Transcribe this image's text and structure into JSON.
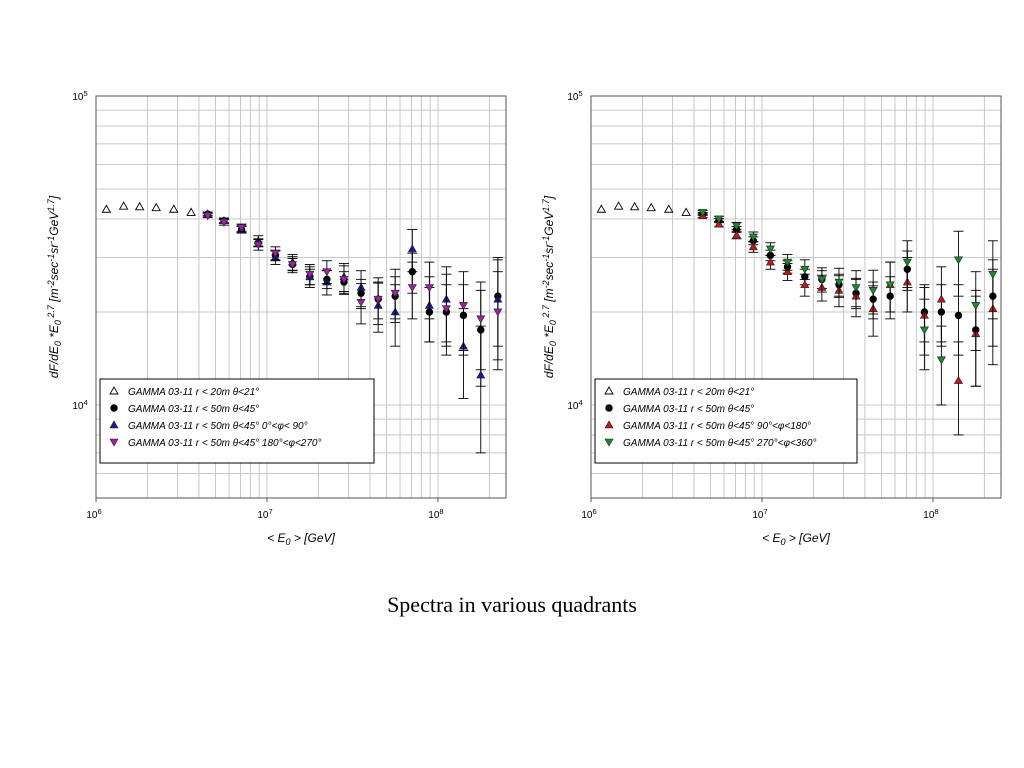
{
  "caption": "Spectra in various quadrants",
  "chart_data": [
    {
      "type": "scatter",
      "xscale": "log",
      "yscale": "log",
      "xlim": [
        1000000,
        250000000
      ],
      "ylim": [
        5000,
        100000
      ],
      "xlabel": "< E0 > [GeV]",
      "ylabel": "dF/dE0 *E0^2.7 [m^-2 sec^-1 sr^-1 GeV^1.7]",
      "xticks": [
        "10^6",
        "10^7",
        "10^8"
      ],
      "yticks": [
        "10^4",
        "10^5"
      ],
      "grid": true,
      "legend_position": "bottom-left",
      "series": [
        {
          "name": "GAMMA 03-11 r < 20m θ<21°",
          "marker": "triangle-up-open",
          "color": "#000000",
          "x": [
            1150000,
            1450000,
            1800000,
            2250000,
            2850000,
            3600000
          ],
          "y": [
            43000,
            44000,
            43800,
            43500,
            43000,
            42000
          ],
          "err": [
            0,
            0,
            0,
            0,
            0,
            0
          ]
        },
        {
          "name": "GAMMA 03-11 r < 50m θ<45°",
          "marker": "circle",
          "color": "#000000",
          "x": [
            4500000,
            5600000,
            7100000,
            8900000,
            11200000,
            14100000,
            17800000,
            22400000,
            28200000,
            35500000,
            44700000,
            56200000,
            70800000,
            89100000,
            112000000,
            141000000,
            178000000,
            224000000
          ],
          "y": [
            41500,
            39500,
            37000,
            33500,
            30500,
            28500,
            26000,
            25500,
            25000,
            23000,
            22000,
            22500,
            27000,
            20000,
            20000,
            19500,
            17500,
            22500
          ],
          "err": [
            500,
            600,
            800,
            1000,
            1200,
            1300,
            1500,
            1700,
            2000,
            2500,
            3000,
            3500,
            4000,
            4000,
            4500,
            5000,
            6000,
            7000
          ]
        },
        {
          "name": "GAMMA 03-11 r < 50m θ<45° 0°<φ< 90°",
          "marker": "triangle-up",
          "color": "#1a1aa0",
          "x": [
            4500000,
            5600000,
            7100000,
            8900000,
            11200000,
            14100000,
            17800000,
            22400000,
            28200000,
            35500000,
            44700000,
            56200000,
            70800000,
            89100000,
            112000000,
            141000000,
            178000000,
            224000000
          ],
          "y": [
            41500,
            39500,
            37000,
            34000,
            30000,
            29000,
            26000,
            25000,
            26000,
            24000,
            21000,
            20000,
            32000,
            21000,
            22000,
            15500,
            12500,
            22000
          ],
          "err": [
            600,
            800,
            1000,
            1300,
            1500,
            1700,
            2000,
            2300,
            2700,
            3200,
            3800,
            4500,
            5000,
            5000,
            6000,
            5000,
            5500,
            8000
          ]
        },
        {
          "name": "GAMMA 03-11 r < 50m θ<45° 180°<φ<270°",
          "marker": "triangle-down",
          "color": "#a020a0",
          "x": [
            4500000,
            5600000,
            7100000,
            8900000,
            11200000,
            14100000,
            17800000,
            22400000,
            28200000,
            35500000,
            44700000,
            56200000,
            70800000,
            89100000,
            112000000,
            141000000,
            178000000,
            224000000
          ],
          "y": [
            41000,
            39000,
            37500,
            33000,
            31000,
            28500,
            26500,
            27000,
            25500,
            21500,
            22000,
            23000,
            24000,
            24000,
            20500,
            21000,
            19000,
            20000
          ],
          "err": [
            600,
            800,
            1000,
            1300,
            1500,
            1700,
            2000,
            2300,
            2700,
            3200,
            3800,
            4500,
            5000,
            5000,
            6000,
            6000,
            6000,
            7000
          ]
        }
      ]
    },
    {
      "type": "scatter",
      "xscale": "log",
      "yscale": "log",
      "xlim": [
        1000000,
        250000000
      ],
      "ylim": [
        5000,
        100000
      ],
      "xlabel": "< E0 > [GeV]",
      "ylabel": "dF/dE0 *E0^2.7 [m^-2 sec^-1 sr^-1 GeV^1.7]",
      "xticks": [
        "10^6",
        "10^7",
        "10^8"
      ],
      "yticks": [
        "10^4",
        "10^5"
      ],
      "grid": true,
      "legend_position": "bottom-left",
      "series": [
        {
          "name": "GAMMA 03-11 r < 20m θ<21°",
          "marker": "triangle-up-open",
          "color": "#000000",
          "x": [
            1150000,
            1450000,
            1800000,
            2250000,
            2850000,
            3600000
          ],
          "y": [
            43000,
            44000,
            43800,
            43500,
            43000,
            42000
          ],
          "err": [
            0,
            0,
            0,
            0,
            0,
            0
          ]
        },
        {
          "name": "GAMMA 03-11 r < 50m θ<45°",
          "marker": "circle",
          "color": "#000000",
          "x": [
            4500000,
            5600000,
            7100000,
            8900000,
            11200000,
            14100000,
            17800000,
            22400000,
            28200000,
            35500000,
            44700000,
            56200000,
            70800000,
            89100000,
            112000000,
            141000000,
            178000000,
            224000000
          ],
          "y": [
            41500,
            39500,
            37000,
            34000,
            30500,
            28000,
            26000,
            25500,
            24500,
            23000,
            22000,
            22500,
            27500,
            20000,
            20000,
            19500,
            17500,
            22500
          ],
          "err": [
            500,
            600,
            800,
            1000,
            1200,
            1300,
            1500,
            1700,
            2000,
            2500,
            3000,
            3500,
            4000,
            4000,
            4500,
            5000,
            6000,
            7000
          ]
        },
        {
          "name": "GAMMA 03-11 r < 50m θ<45° 90°<φ<180°",
          "marker": "triangle-up",
          "color": "#c01818",
          "x": [
            4500000,
            5600000,
            7100000,
            8900000,
            11200000,
            14100000,
            17800000,
            22400000,
            28200000,
            35500000,
            44700000,
            56200000,
            70800000,
            89100000,
            112000000,
            141000000,
            178000000,
            224000000
          ],
          "y": [
            41000,
            38500,
            35500,
            32500,
            29000,
            27000,
            24500,
            24000,
            23500,
            22500,
            20500,
            24500,
            25000,
            19500,
            22000,
            12000,
            17000,
            20500
          ],
          "err": [
            600,
            800,
            1000,
            1300,
            1500,
            1700,
            2000,
            2300,
            2700,
            3200,
            3800,
            4500,
            5000,
            5000,
            6000,
            4000,
            5500,
            7000
          ]
        },
        {
          "name": "GAMMA 03-11 r < 50m θ<45° 270°<φ<360°",
          "marker": "triangle-down",
          "color": "#1a8a2a",
          "x": [
            4500000,
            5600000,
            7100000,
            8900000,
            11200000,
            14100000,
            17800000,
            22400000,
            28200000,
            35500000,
            44700000,
            56200000,
            70800000,
            89100000,
            112000000,
            141000000,
            178000000,
            224000000
          ],
          "y": [
            42000,
            40000,
            38000,
            35000,
            32000,
            29000,
            27500,
            25500,
            25000,
            24000,
            23500,
            24500,
            29000,
            17500,
            14000,
            29500,
            21000,
            26500
          ],
          "err": [
            600,
            800,
            1000,
            1300,
            1500,
            1700,
            2000,
            2300,
            2700,
            3200,
            3800,
            4500,
            5000,
            4500,
            4000,
            7000,
            6000,
            7500
          ]
        }
      ]
    }
  ]
}
